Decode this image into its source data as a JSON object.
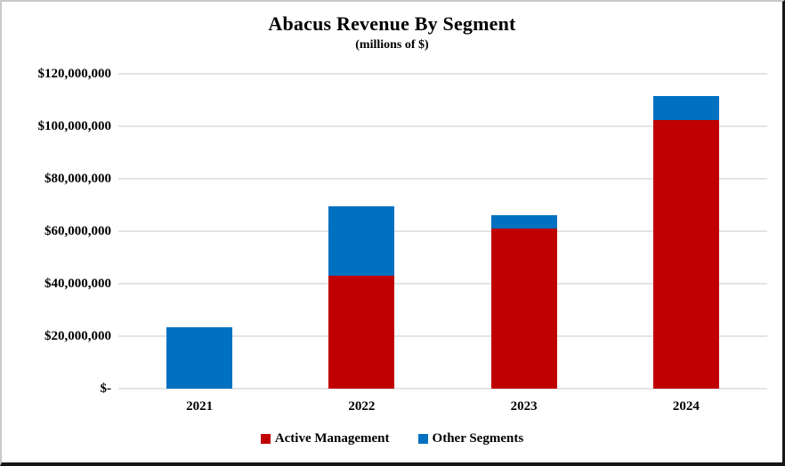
{
  "chart_data": {
    "type": "bar",
    "stacked": true,
    "title": "Abacus Revenue By Segment",
    "subtitle": "(millions of $)",
    "categories": [
      "2021",
      "2022",
      "2023",
      "2024"
    ],
    "series": [
      {
        "name": "Active Management",
        "color": "#C00000",
        "values": [
          0,
          43000000,
          61000000,
          102500000
        ]
      },
      {
        "name": "Other Segments",
        "color": "#0070C0",
        "values": [
          23500000,
          26500000,
          5000000,
          9000000
        ]
      }
    ],
    "totals": [
      23500000,
      69500000,
      66000000,
      111500000
    ],
    "xlabel": "",
    "ylabel": "",
    "ylim": [
      0,
      120000000
    ],
    "y_ticks": [
      {
        "value": 0,
        "label": "$-"
      },
      {
        "value": 20000000,
        "label": "$20,000,000"
      },
      {
        "value": 40000000,
        "label": "$40,000,000"
      },
      {
        "value": 60000000,
        "label": "$60,000,000"
      },
      {
        "value": 80000000,
        "label": "$80,000,000"
      },
      {
        "value": 100000000,
        "label": "$100,000,000"
      },
      {
        "value": 120000000,
        "label": "$120,000,000"
      }
    ],
    "grid": true,
    "legend_position": "bottom",
    "colors": {
      "background": "#ffffff",
      "gridline": "#e4e4e4",
      "text": "#000000",
      "active_management": "#C00000",
      "other_segments": "#0070C0"
    }
  }
}
